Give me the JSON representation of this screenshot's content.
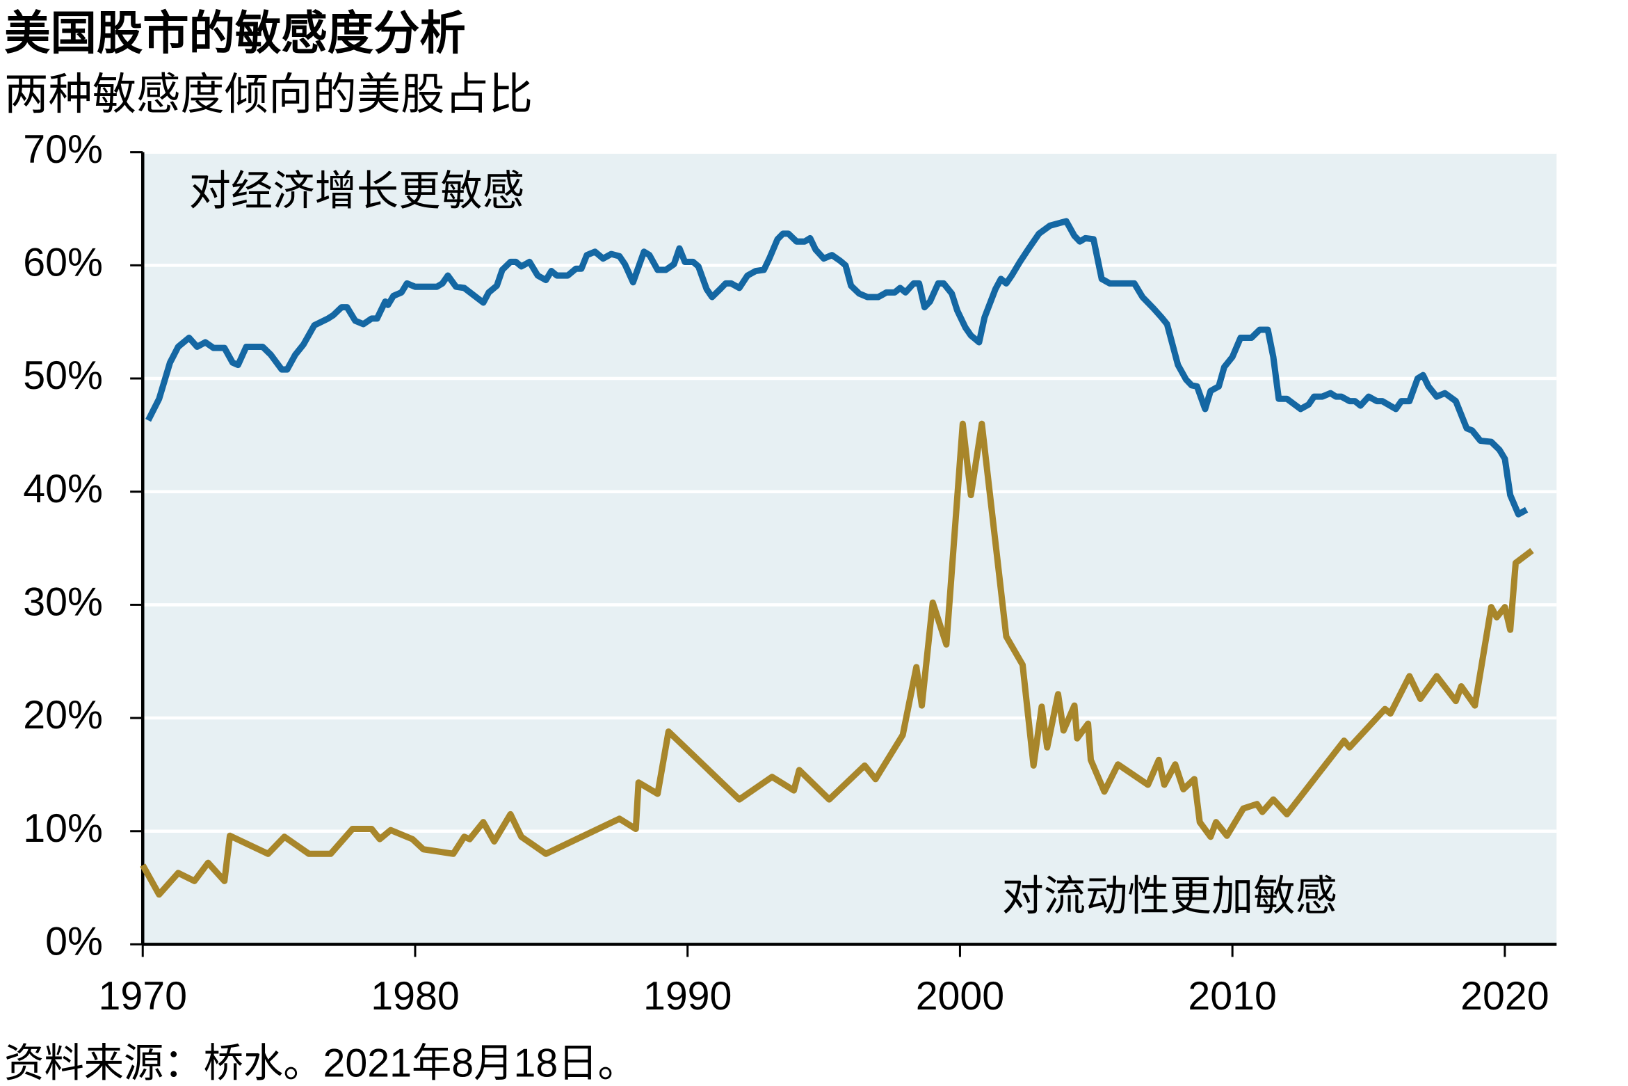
{
  "chart_data": {
    "type": "line",
    "title": "美国股市的敏感度分析",
    "subtitle": "两种敏感度倾向的美股占比",
    "source": "资料来源：桥水。2021年8月18日。",
    "xlim": [
      1970,
      2021.9
    ],
    "xticks": [
      1970,
      1980,
      1990,
      2000,
      2010,
      2020
    ],
    "ylim": [
      0,
      70
    ],
    "yticks": [
      {
        "value": 0,
        "label": "0%"
      },
      {
        "value": 10,
        "label": "10%"
      },
      {
        "value": 20,
        "label": "20%"
      },
      {
        "value": 30,
        "label": "30%"
      },
      {
        "value": 40,
        "label": "40%"
      },
      {
        "value": 50,
        "label": "50%"
      },
      {
        "value": 60,
        "label": "60%"
      },
      {
        "value": 70,
        "label": "70%"
      }
    ],
    "grid": true,
    "series": [
      {
        "name": "对经济增长更敏感",
        "color": "#1467a3",
        "x": [
          1970.2,
          1970.6,
          1971.0,
          1971.3,
          1971.7,
          1972.0,
          1972.3,
          1972.6,
          1973.0,
          1973.3,
          1973.5,
          1973.8,
          1974.4,
          1974.7,
          1975.1,
          1975.3,
          1975.6,
          1975.9,
          1976.3,
          1976.8,
          1977.0,
          1977.3,
          1977.5,
          1977.8,
          1978.1,
          1978.4,
          1978.6,
          1978.9,
          1979.0,
          1979.2,
          1979.5,
          1979.7,
          1980.0,
          1980.8,
          1981.0,
          1981.2,
          1981.5,
          1981.8,
          1982.5,
          1982.7,
          1983.0,
          1983.2,
          1983.5,
          1983.7,
          1983.9,
          1984.2,
          1984.5,
          1984.8,
          1985.0,
          1985.2,
          1985.6,
          1985.9,
          1986.1,
          1986.3,
          1986.6,
          1986.9,
          1987.2,
          1987.5,
          1987.7,
          1988.0,
          1988.4,
          1988.6,
          1988.9,
          1989.2,
          1989.5,
          1989.7,
          1989.9,
          1990.2,
          1990.4,
          1990.7,
          1990.9,
          1991.2,
          1991.4,
          1991.6,
          1991.9,
          1992.2,
          1992.5,
          1992.8,
          1993.0,
          1993.3,
          1993.5,
          1993.7,
          1994.0,
          1994.3,
          1994.5,
          1994.7,
          1995.0,
          1995.3,
          1995.6,
          1995.8,
          1996.0,
          1996.3,
          1996.6,
          1997.0,
          1997.3,
          1997.6,
          1997.8,
          1998.0,
          1998.3,
          1998.5,
          1998.7,
          1998.9,
          1999.2,
          1999.4,
          1999.7,
          1999.9,
          2000.2,
          2000.4,
          2000.7,
          2000.9,
          2001.3,
          2001.5,
          2001.7,
          2001.9,
          2002.2,
          2002.5,
          2002.9,
          2003.3,
          2003.9,
          2004.2,
          2004.4,
          2004.6,
          2004.9,
          2005.2,
          2005.5,
          2006.4,
          2006.7,
          2007.1,
          2007.4,
          2007.6,
          2008.0,
          2008.3,
          2008.5,
          2008.7,
          2009.0,
          2009.2,
          2009.5,
          2009.7,
          2010.0,
          2010.3,
          2010.7,
          2011.0,
          2011.3,
          2011.5,
          2011.7,
          2012.0,
          2012.5,
          2012.8,
          2013.0,
          2013.3,
          2013.6,
          2013.8,
          2014.0,
          2014.3,
          2014.5,
          2014.7,
          2015.0,
          2015.3,
          2015.5,
          2016.0,
          2016.2,
          2016.5,
          2016.8,
          2017.0,
          2017.2,
          2017.5,
          2017.8,
          2018.2,
          2018.6,
          2018.8,
          2019.1,
          2019.5,
          2019.8,
          2020.0,
          2020.2,
          2020.5,
          2020.8
        ],
        "values": [
          46.3,
          48.2,
          51.4,
          52.8,
          53.6,
          52.8,
          53.2,
          52.7,
          52.7,
          51.4,
          51.2,
          52.8,
          52.8,
          52.1,
          50.8,
          50.8,
          52.1,
          53.0,
          54.7,
          55.3,
          55.6,
          56.3,
          56.3,
          55.1,
          54.8,
          55.3,
          55.3,
          56.8,
          56.5,
          57.3,
          57.6,
          58.4,
          58.1,
          58.1,
          58.4,
          59.1,
          58.1,
          58.0,
          56.7,
          57.6,
          58.2,
          59.6,
          60.3,
          60.3,
          59.9,
          60.3,
          59.1,
          58.7,
          59.5,
          59.1,
          59.1,
          59.7,
          59.7,
          60.9,
          61.2,
          60.6,
          61.0,
          60.8,
          60.1,
          58.5,
          61.2,
          60.9,
          59.6,
          59.6,
          60.1,
          61.5,
          60.3,
          60.3,
          59.9,
          57.9,
          57.2,
          57.9,
          58.4,
          58.4,
          58.0,
          59.1,
          59.5,
          59.6,
          60.6,
          62.3,
          62.8,
          62.8,
          62.1,
          62.1,
          62.4,
          61.4,
          60.6,
          60.9,
          60.4,
          60.0,
          58.2,
          57.5,
          57.2,
          57.2,
          57.6,
          57.6,
          58.0,
          57.6,
          58.4,
          58.4,
          56.3,
          56.8,
          58.4,
          58.4,
          57.5,
          56.0,
          54.5,
          53.8,
          53.2,
          55.4,
          57.9,
          58.8,
          58.4,
          59.1,
          60.3,
          61.4,
          62.8,
          63.5,
          63.9,
          62.6,
          62.1,
          62.4,
          62.3,
          58.8,
          58.4,
          58.4,
          57.2,
          56.2,
          55.4,
          54.8,
          51.2,
          49.9,
          49.4,
          49.3,
          47.3,
          48.9,
          49.3,
          51.0,
          51.9,
          53.6,
          53.6,
          54.3,
          54.3,
          51.9,
          48.2,
          48.2,
          47.3,
          47.7,
          48.4,
          48.4,
          48.7,
          48.4,
          48.4,
          48.0,
          48.0,
          47.6,
          48.4,
          48.0,
          48.0,
          47.3,
          48.0,
          48.0,
          50.0,
          50.3,
          49.3,
          48.4,
          48.7,
          48.0,
          45.6,
          45.4,
          44.5,
          44.4,
          43.7,
          42.9,
          39.7,
          38.0,
          38.4
        ]
      },
      {
        "name": "对流动性更加敏感",
        "color": "#a8862a",
        "x": [
          1970.0,
          1970.6,
          1971.3,
          1971.9,
          1972.4,
          1973.0,
          1973.2,
          1974.6,
          1975.2,
          1976.1,
          1976.9,
          1977.7,
          1978.4,
          1978.7,
          1979.1,
          1979.9,
          1980.3,
          1981.4,
          1981.8,
          1982.0,
          1982.5,
          1982.9,
          1983.5,
          1983.9,
          1984.8,
          1987.5,
          1988.1,
          1988.2,
          1988.9,
          1989.3,
          1991.9,
          1993.1,
          1993.9,
          1994.1,
          1995.2,
          1996.5,
          1996.9,
          1997.9,
          1998.4,
          1998.6,
          1999.0,
          1999.5,
          2000.1,
          2000.4,
          2000.8,
          2001.7,
          2002.3,
          2002.7,
          2003.0,
          2003.2,
          2003.6,
          2003.8,
          2004.2,
          2004.3,
          2004.7,
          2004.8,
          2005.3,
          2005.8,
          2006.9,
          2007.3,
          2007.5,
          2007.9,
          2008.2,
          2008.6,
          2008.8,
          2009.2,
          2009.4,
          2009.8,
          2010.4,
          2010.9,
          2011.1,
          2011.5,
          2012.0,
          2014.1,
          2014.3,
          2015.6,
          2015.8,
          2016.5,
          2016.9,
          2017.5,
          2018.2,
          2018.4,
          2018.9,
          2019.5,
          2019.7,
          2020.0,
          2020.2,
          2020.4,
          2021.0
        ],
        "values": [
          7.0,
          4.4,
          6.3,
          5.6,
          7.2,
          5.6,
          9.6,
          8.0,
          9.5,
          8.0,
          8.0,
          10.2,
          10.2,
          9.3,
          10.1,
          9.3,
          8.4,
          8.0,
          9.5,
          9.3,
          10.8,
          9.1,
          11.5,
          9.5,
          8.0,
          11.1,
          10.2,
          14.3,
          13.3,
          18.8,
          12.8,
          14.8,
          13.6,
          15.4,
          12.8,
          15.8,
          14.6,
          18.5,
          24.5,
          21.1,
          30.2,
          26.5,
          46.0,
          39.7,
          46.0,
          27.2,
          24.7,
          15.8,
          21.0,
          17.4,
          22.1,
          18.9,
          21.1,
          18.2,
          19.5,
          16.3,
          13.5,
          15.9,
          14.1,
          16.3,
          14.1,
          15.9,
          13.7,
          14.6,
          10.8,
          9.5,
          10.8,
          9.6,
          12.0,
          12.4,
          11.7,
          12.8,
          11.5,
          18.0,
          17.4,
          20.8,
          20.4,
          23.7,
          21.7,
          23.7,
          21.5,
          22.8,
          21.1,
          29.8,
          28.9,
          29.8,
          27.8,
          33.7,
          34.8
        ]
      }
    ]
  }
}
